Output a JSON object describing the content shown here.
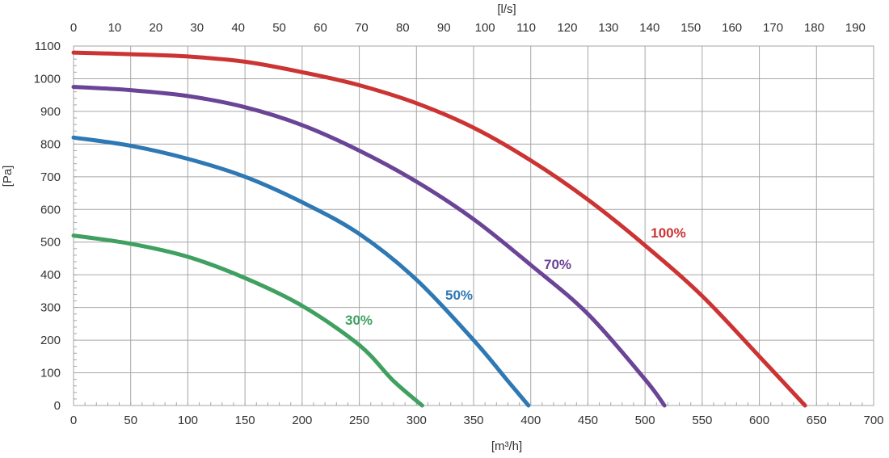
{
  "chart_data": {
    "type": "line",
    "xlabel": "[m³/h]",
    "ylabel": "[Pa]",
    "x2label": "[l/s]",
    "xlim": [
      0,
      700
    ],
    "ylim": [
      0,
      1100
    ],
    "x2lim": [
      0,
      194.44
    ],
    "xticks": [
      0,
      50,
      100,
      150,
      200,
      250,
      300,
      350,
      400,
      450,
      500,
      550,
      600,
      650,
      700
    ],
    "yticks": [
      0,
      100,
      200,
      300,
      400,
      500,
      600,
      700,
      800,
      900,
      1000,
      1100
    ],
    "x2ticks": [
      0,
      10,
      20,
      30,
      40,
      50,
      60,
      70,
      80,
      90,
      100,
      110,
      120,
      130,
      140,
      150,
      160,
      170,
      180,
      190
    ],
    "grid": true,
    "series": [
      {
        "name": "100%",
        "color": "#cc3333",
        "x": [
          0,
          50,
          100,
          150,
          200,
          250,
          300,
          350,
          400,
          450,
          500,
          550,
          600,
          640
        ],
        "y": [
          1080,
          1075,
          1068,
          1052,
          1020,
          980,
          925,
          850,
          750,
          630,
          490,
          335,
          150,
          0
        ]
      },
      {
        "name": "70%",
        "color": "#6a4496",
        "x": [
          0,
          50,
          100,
          150,
          200,
          250,
          300,
          350,
          400,
          450,
          500,
          517
        ],
        "y": [
          975,
          965,
          947,
          913,
          858,
          780,
          685,
          570,
          430,
          280,
          80,
          0
        ]
      },
      {
        "name": "50%",
        "color": "#2e78b4",
        "x": [
          0,
          50,
          100,
          150,
          200,
          250,
          300,
          350,
          380,
          398
        ],
        "y": [
          820,
          795,
          755,
          700,
          622,
          525,
          385,
          200,
          75,
          0
        ]
      },
      {
        "name": "30%",
        "color": "#3fa060",
        "x": [
          0,
          50,
          100,
          150,
          200,
          250,
          280,
          305
        ],
        "y": [
          520,
          495,
          455,
          390,
          305,
          185,
          75,
          0
        ]
      }
    ]
  }
}
